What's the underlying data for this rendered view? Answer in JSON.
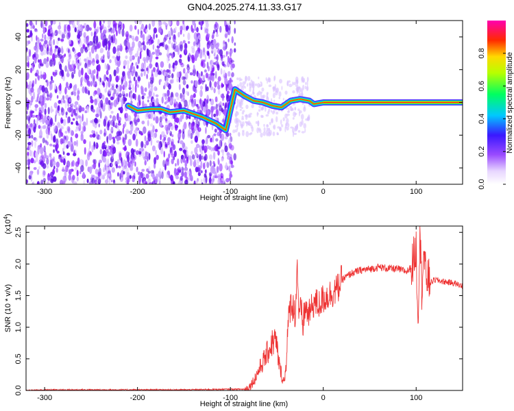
{
  "title": "GN04.2025.274.11.33.G17",
  "chart_data": [
    {
      "type": "heatmap",
      "xlabel": "Height of straight line (km)",
      "ylabel": "Frequency (Hz)",
      "xlim": [
        -320,
        150
      ],
      "ylim": [
        -50,
        50
      ],
      "xticks": [
        -300,
        -200,
        -100,
        0,
        100
      ],
      "yticks": [
        -40,
        -20,
        0,
        20,
        40
      ],
      "colorbar": {
        "label": "Normalized spectral amplitude",
        "range": [
          0,
          1
        ],
        "ticks": [
          "0.0",
          "0.2",
          "0.4",
          "0.6",
          "0.8"
        ],
        "colormap": "white-purple-blue-cyan-green-yellow-red-magenta"
      },
      "noise_region_x": [
        -320,
        -95
      ],
      "ridge": [
        {
          "x": -210,
          "y": -2
        },
        {
          "x": -200,
          "y": -5
        },
        {
          "x": -185,
          "y": -4
        },
        {
          "x": -175,
          "y": -4
        },
        {
          "x": -165,
          "y": -6
        },
        {
          "x": -150,
          "y": -5
        },
        {
          "x": -130,
          "y": -9
        },
        {
          "x": -115,
          "y": -13
        },
        {
          "x": -105,
          "y": -17
        },
        {
          "x": -95,
          "y": 8
        },
        {
          "x": -85,
          "y": 4
        },
        {
          "x": -75,
          "y": 1
        },
        {
          "x": -65,
          "y": 0
        },
        {
          "x": -55,
          "y": -2
        },
        {
          "x": -45,
          "y": -3
        },
        {
          "x": -35,
          "y": 1
        },
        {
          "x": -25,
          "y": 2
        },
        {
          "x": -15,
          "y": 1
        },
        {
          "x": -10,
          "y": -1
        },
        {
          "x": 0,
          "y": 0
        },
        {
          "x": 150,
          "y": 0
        }
      ]
    },
    {
      "type": "line",
      "xlabel": "Height of straight line (km)",
      "ylabel": "SNR (10 * v/v)",
      "y_multiplier": "(x10",
      "y_multiplier_exp": "4",
      "y_multiplier_close": ")",
      "xlim": [
        -320,
        150
      ],
      "ylim": [
        0,
        2.6
      ],
      "xticks": [
        -300,
        -200,
        -100,
        0,
        100
      ],
      "yticks": [
        "0.0",
        "0.5",
        "1.0",
        "1.5",
        "2.0",
        "2.5"
      ],
      "series": [
        {
          "color": "#ee3333",
          "x": [
            -320,
            -300,
            -250,
            -200,
            -150,
            -100,
            -85,
            -80,
            -75,
            -70,
            -65,
            -60,
            -55,
            -52,
            -50,
            -48,
            -45,
            -42,
            -40,
            -38,
            -35,
            -32,
            -30,
            -28,
            -26,
            -24,
            -22,
            -20,
            -15,
            -10,
            -5,
            0,
            5,
            10,
            15,
            20,
            25,
            30,
            40,
            50,
            60,
            70,
            80,
            90,
            95,
            100,
            102,
            104,
            106,
            108,
            110,
            115,
            120,
            130,
            140,
            150
          ],
          "y": [
            0.0,
            0.01,
            0.01,
            0.01,
            0.01,
            0.02,
            0.02,
            0.05,
            0.15,
            0.3,
            0.45,
            0.6,
            0.75,
            0.8,
            0.7,
            0.45,
            0.25,
            0.12,
            0.45,
            1.0,
            1.4,
            1.3,
            1.2,
            2.0,
            1.1,
            1.3,
            1.0,
            1.3,
            1.2,
            1.4,
            1.35,
            1.45,
            1.5,
            1.55,
            1.6,
            1.75,
            1.8,
            1.85,
            1.9,
            1.92,
            1.95,
            1.93,
            1.92,
            1.88,
            1.95,
            2.25,
            1.1,
            2.6,
            1.6,
            2.2,
            1.85,
            1.7,
            1.75,
            1.72,
            1.7,
            1.65
          ]
        }
      ]
    }
  ]
}
